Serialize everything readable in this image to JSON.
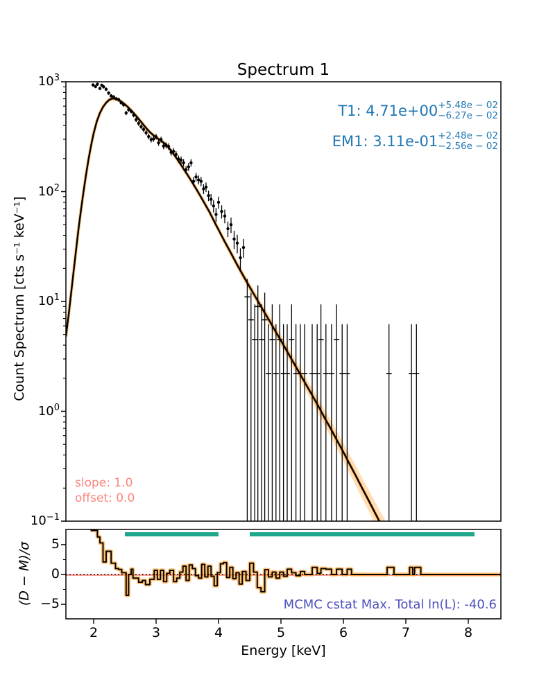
{
  "title": "Spectrum 1",
  "colors": {
    "param_blue": "#1f77b4",
    "salmon_text": "#f9867c",
    "salmon_line": "#fa8072",
    "teal_band": "#1fa78d",
    "mcmc_indigo": "#4d51bd",
    "band_orange_fill": "rgba(255,170,70,0.40)",
    "band_orange_glow": "rgba(255,150,30,0.55)",
    "residual_glow": "rgba(255,160,40,0.65)",
    "model_black": "#000000"
  },
  "main_axis": {
    "ylabel": "Count Spectrum [cts s⁻¹ keV⁻¹]",
    "ytick_base": "10",
    "ytick_exponents": [
      "3",
      "2",
      "1",
      "0",
      "−1"
    ],
    "ytick_values": [
      1000,
      100,
      10,
      1,
      0.1
    ]
  },
  "residual_axis": {
    "ylabel": "(D − M)/σ",
    "yticks": [
      "5",
      "0",
      "−5"
    ],
    "yvalues": [
      5,
      0,
      -5
    ]
  },
  "x_axis": {
    "label": "Energy [keV]",
    "ticks": [
      2,
      3,
      4,
      5,
      6,
      7,
      8
    ]
  },
  "annotations": {
    "t1": {
      "main": "T1: 4.71e+00",
      "plus": "+5.48e − 02",
      "minus": "−6.27e − 02"
    },
    "em1": {
      "main": "EM1: 3.11e-01",
      "plus": "+2.48e − 02",
      "minus": "−2.56e − 02"
    },
    "slope": "slope: 1.0",
    "offset": "offset: 0.0",
    "mcmc": "MCMC cstat Max. Total ln(L): -40.6"
  },
  "chart_data": [
    {
      "type": "line",
      "name": "count-spectrum",
      "title": "Spectrum 1",
      "xlabel": "Energy [keV]",
      "ylabel": "Count Spectrum [cts s⁻¹ keV⁻¹]",
      "yscale": "log",
      "xlim": [
        1.556,
        8.522
      ],
      "ylim": [
        0.1,
        1000
      ],
      "legend": "none",
      "grid": false,
      "model_curve": [
        [
          1.556,
          4.8,
          0.1
        ],
        [
          1.6,
          7.6,
          0.1
        ],
        [
          1.64,
          12,
          0.095
        ],
        [
          1.68,
          19,
          0.09
        ],
        [
          1.72,
          30,
          0.09
        ],
        [
          1.76,
          47,
          0.085
        ],
        [
          1.8,
          70,
          0.08
        ],
        [
          1.84,
          102,
          0.08
        ],
        [
          1.88,
          145,
          0.075
        ],
        [
          1.92,
          200,
          0.07
        ],
        [
          1.96,
          265,
          0.07
        ],
        [
          2.0,
          340,
          0.065
        ],
        [
          2.05,
          435,
          0.06
        ],
        [
          2.1,
          520,
          0.055
        ],
        [
          2.15,
          590,
          0.05
        ],
        [
          2.2,
          645,
          0.05
        ],
        [
          2.25,
          685,
          0.045
        ],
        [
          2.3,
          705,
          0.045
        ],
        [
          2.35,
          700,
          0.045
        ],
        [
          2.4,
          682,
          0.045
        ],
        [
          2.45,
          655,
          0.045
        ],
        [
          2.5,
          622,
          0.045
        ],
        [
          2.55,
          588,
          0.045
        ],
        [
          2.6,
          550,
          0.045
        ],
        [
          2.65,
          512,
          0.045
        ],
        [
          2.7,
          474,
          0.045
        ],
        [
          2.75,
          438,
          0.045
        ],
        [
          2.8,
          404,
          0.045
        ],
        [
          2.85,
          374,
          0.045
        ],
        [
          2.9,
          348,
          0.045
        ],
        [
          2.95,
          328,
          0.045
        ],
        [
          3.0,
          312,
          0.045
        ],
        [
          3.05,
          298,
          0.045
        ],
        [
          3.1,
          285,
          0.045
        ],
        [
          3.15,
          270,
          0.045
        ],
        [
          3.2,
          252,
          0.045
        ],
        [
          3.25,
          232,
          0.045
        ],
        [
          3.3,
          212,
          0.045
        ],
        [
          3.35,
          193,
          0.05
        ],
        [
          3.4,
          175,
          0.05
        ],
        [
          3.45,
          158,
          0.05
        ],
        [
          3.5,
          143,
          0.05
        ],
        [
          3.55,
          129,
          0.05
        ],
        [
          3.6,
          116,
          0.055
        ],
        [
          3.65,
          104,
          0.055
        ],
        [
          3.7,
          93,
          0.055
        ],
        [
          3.75,
          83,
          0.06
        ],
        [
          3.8,
          74,
          0.06
        ],
        [
          3.85,
          66,
          0.06
        ],
        [
          3.9,
          58,
          0.065
        ],
        [
          3.95,
          51,
          0.065
        ],
        [
          4.0,
          45,
          0.07
        ],
        [
          4.1,
          35,
          0.075
        ],
        [
          4.2,
          27.5,
          0.08
        ],
        [
          4.3,
          21.5,
          0.085
        ],
        [
          4.4,
          17,
          0.09
        ],
        [
          4.5,
          13.5,
          0.095
        ],
        [
          4.6,
          10.8,
          0.1
        ],
        [
          4.7,
          8.6,
          0.105
        ],
        [
          4.8,
          6.9,
          0.11
        ],
        [
          4.9,
          5.5,
          0.115
        ],
        [
          5.0,
          4.4,
          0.12
        ],
        [
          5.1,
          3.5,
          0.13
        ],
        [
          5.2,
          2.78,
          0.135
        ],
        [
          5.3,
          2.21,
          0.14
        ],
        [
          5.4,
          1.76,
          0.15
        ],
        [
          5.5,
          1.4,
          0.16
        ],
        [
          5.6,
          1.11,
          0.17
        ],
        [
          5.7,
          0.87,
          0.18
        ],
        [
          5.8,
          0.69,
          0.19
        ],
        [
          5.9,
          0.54,
          0.2
        ],
        [
          6.0,
          0.425,
          0.21
        ],
        [
          6.1,
          0.33,
          0.22
        ],
        [
          6.2,
          0.258,
          0.23
        ],
        [
          6.3,
          0.2,
          0.24
        ],
        [
          6.4,
          0.156,
          0.25
        ],
        [
          6.5,
          0.121,
          0.26
        ],
        [
          6.6,
          0.094,
          0.27
        ],
        [
          6.66,
          0.082,
          0.28
        ]
      ],
      "data_points": [
        [
          1.99,
          935,
          33
        ],
        [
          2.03,
          905,
          32
        ],
        [
          2.06,
          950,
          33
        ],
        [
          2.1,
          870,
          31
        ],
        [
          2.13,
          930,
          32
        ],
        [
          2.16,
          900,
          32
        ],
        [
          2.2,
          855,
          31
        ],
        [
          2.24,
          790,
          30
        ],
        [
          2.28,
          745,
          29
        ],
        [
          2.32,
          728,
          28
        ],
        [
          2.36,
          700,
          28
        ],
        [
          2.4,
          688,
          27
        ],
        [
          2.44,
          645,
          26
        ],
        [
          2.48,
          618,
          26
        ],
        [
          2.52,
          520,
          24
        ],
        [
          2.56,
          558,
          25
        ],
        [
          2.6,
          538,
          24
        ],
        [
          2.64,
          498,
          23
        ],
        [
          2.68,
          452,
          22
        ],
        [
          2.72,
          418,
          21
        ],
        [
          2.76,
          390,
          21
        ],
        [
          2.8,
          368,
          20
        ],
        [
          2.84,
          344,
          19
        ],
        [
          2.88,
          318,
          19
        ],
        [
          2.92,
          298,
          18
        ],
        [
          2.96,
          302,
          18
        ],
        [
          3.0,
          316,
          18
        ],
        [
          3.04,
          278,
          17
        ],
        [
          3.08,
          298,
          18
        ],
        [
          3.12,
          260,
          17
        ],
        [
          3.16,
          264,
          17
        ],
        [
          3.2,
          258,
          17
        ],
        [
          3.24,
          228,
          16
        ],
        [
          3.28,
          233,
          16
        ],
        [
          3.32,
          218,
          15
        ],
        [
          3.36,
          198,
          15
        ],
        [
          3.4,
          194,
          15
        ],
        [
          3.44,
          183,
          14
        ],
        [
          3.48,
          158,
          13
        ],
        [
          3.52,
          168,
          14
        ],
        [
          3.56,
          183,
          14
        ],
        [
          3.6,
          124,
          12
        ],
        [
          3.64,
          136,
          12
        ],
        [
          3.68,
          128,
          12
        ],
        [
          3.72,
          124,
          12
        ],
        [
          3.76,
          106,
          11
        ],
        [
          3.8,
          110,
          11
        ],
        [
          3.84,
          92,
          10
        ],
        [
          3.88,
          85,
          10
        ],
        [
          3.92,
          74,
          9.5
        ],
        [
          3.96,
          62,
          9
        ],
        [
          4.0,
          80,
          10
        ],
        [
          4.05,
          66,
          9
        ],
        [
          4.1,
          60,
          8.5
        ],
        [
          4.15,
          46,
          7.5
        ],
        [
          4.2,
          50,
          8
        ],
        [
          4.25,
          37,
          7
        ],
        [
          4.3,
          34,
          6.5
        ],
        [
          4.35,
          25,
          5.5
        ],
        [
          4.4,
          31,
          6
        ]
      ],
      "poisson_points": [
        [
          4.46,
          11,
          0.05,
          16
        ],
        [
          4.52,
          6.8,
          0.05,
          12
        ],
        [
          4.58,
          4.5,
          0.05,
          9.4
        ],
        [
          4.63,
          9,
          0.05,
          14
        ],
        [
          4.69,
          4.5,
          0.05,
          9.4
        ],
        [
          4.74,
          6.8,
          0.05,
          12
        ],
        [
          4.8,
          2.2,
          0.05,
          6.2
        ],
        [
          4.86,
          4.5,
          0.05,
          9.4
        ],
        [
          4.92,
          2.2,
          0.05,
          6.2
        ],
        [
          4.98,
          4.5,
          0.05,
          9.4
        ],
        [
          5.04,
          2.2,
          0.05,
          6.2
        ],
        [
          5.1,
          2.2,
          0.05,
          6.2
        ],
        [
          5.17,
          4.5,
          0.05,
          9.4
        ],
        [
          5.24,
          2.2,
          0.05,
          6.2
        ],
        [
          5.31,
          2.2,
          0.05,
          6.2
        ],
        [
          5.38,
          2.2,
          0.05,
          6.2
        ],
        [
          5.5,
          2.2,
          0.05,
          6.2
        ],
        [
          5.58,
          2.2,
          0.05,
          6.2
        ],
        [
          5.64,
          4.5,
          0.05,
          9.4
        ],
        [
          5.72,
          2.2,
          0.05,
          6.2
        ],
        [
          5.81,
          2.2,
          0.05,
          6.2
        ],
        [
          5.89,
          4.5,
          0.05,
          9.4
        ],
        [
          5.98,
          2.2,
          0.05,
          6.2
        ],
        [
          6.06,
          2.2,
          0.05,
          6.2
        ],
        [
          6.73,
          2.2,
          0.05,
          6.2
        ],
        [
          7.09,
          2.2,
          0.05,
          6.2
        ],
        [
          7.17,
          2.2,
          0.05,
          6.2
        ]
      ]
    },
    {
      "type": "line",
      "name": "residuals",
      "ylabel": "(D − M)/σ",
      "xlabel": "Energy [keV]",
      "xlim": [
        1.556,
        8.522
      ],
      "ylim": [
        -7.5,
        7.6
      ],
      "zero_line": 0,
      "selection_bands": [
        [
          2.5,
          4.0
        ],
        [
          4.5,
          8.1
        ]
      ],
      "steps": [
        [
          1.95,
          7.4
        ],
        [
          2.06,
          6.3
        ],
        [
          2.1,
          5.3
        ],
        [
          2.15,
          2.1
        ],
        [
          2.2,
          3.9
        ],
        [
          2.28,
          1.9
        ],
        [
          2.35,
          1.0
        ],
        [
          2.4,
          0.85
        ],
        [
          2.45,
          0.3
        ],
        [
          2.52,
          -3.5
        ],
        [
          2.56,
          0.0
        ],
        [
          2.6,
          0.9
        ],
        [
          2.63,
          -0.6
        ],
        [
          2.72,
          -1.3
        ],
        [
          2.78,
          -1.0
        ],
        [
          2.83,
          -1.7
        ],
        [
          2.9,
          -0.8
        ],
        [
          2.97,
          0.7
        ],
        [
          3.02,
          -0.8
        ],
        [
          3.07,
          0.7
        ],
        [
          3.12,
          -1.2
        ],
        [
          3.17,
          0.2
        ],
        [
          3.22,
          0.7
        ],
        [
          3.28,
          -1.2
        ],
        [
          3.33,
          -0.6
        ],
        [
          3.38,
          0.4
        ],
        [
          3.43,
          1.4
        ],
        [
          3.48,
          -1.0
        ],
        [
          3.53,
          1.6
        ],
        [
          3.58,
          1.0
        ],
        [
          3.63,
          -0.2
        ],
        [
          3.68,
          -0.6
        ],
        [
          3.73,
          1.7
        ],
        [
          3.78,
          -0.4
        ],
        [
          3.83,
          1.4
        ],
        [
          3.88,
          -0.3
        ],
        [
          3.93,
          -1.9
        ],
        [
          3.98,
          0.3
        ],
        [
          4.03,
          1.8
        ],
        [
          4.08,
          2.0
        ],
        [
          4.13,
          -0.5
        ],
        [
          4.18,
          1.2
        ],
        [
          4.23,
          -0.7
        ],
        [
          4.28,
          0.3
        ],
        [
          4.33,
          -1.6
        ],
        [
          4.38,
          0.5
        ],
        [
          4.44,
          -1.0
        ],
        [
          4.5,
          1.9
        ],
        [
          4.56,
          0.4
        ],
        [
          4.62,
          -2.2
        ],
        [
          4.68,
          -2.9
        ],
        [
          4.74,
          0.8
        ],
        [
          4.8,
          -0.4
        ],
        [
          4.86,
          0.4
        ],
        [
          4.92,
          -0.6
        ],
        [
          4.98,
          0.4
        ],
        [
          5.04,
          -0.3
        ],
        [
          5.1,
          0.9
        ],
        [
          5.17,
          0.3
        ],
        [
          5.24,
          -0.2
        ],
        [
          5.31,
          0.5
        ],
        [
          5.38,
          0.0
        ],
        [
          5.5,
          1.2
        ],
        [
          5.58,
          0.2
        ],
        [
          5.64,
          1.0
        ],
        [
          5.72,
          0.9
        ],
        [
          5.81,
          0.0
        ],
        [
          5.89,
          0.9
        ],
        [
          5.98,
          0.0
        ],
        [
          6.06,
          0.9
        ],
        [
          6.13,
          0.0
        ],
        [
          6.7,
          1.2
        ],
        [
          6.81,
          0.0
        ],
        [
          7.06,
          1.2
        ],
        [
          7.11,
          0.0
        ],
        [
          7.14,
          1.2
        ],
        [
          7.24,
          0.0
        ]
      ]
    }
  ]
}
